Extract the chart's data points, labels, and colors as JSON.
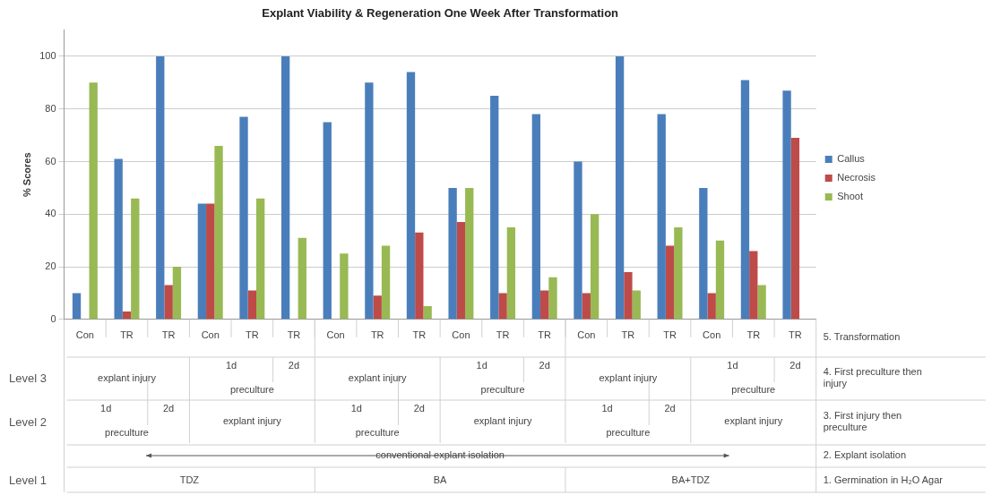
{
  "chart_data": {
    "type": "bar",
    "title": "Explant Viability & Regeneration One Week After Transformation",
    "ylabel": "% Scores",
    "categories": [
      "Con",
      "TR",
      "TR",
      "Con",
      "TR",
      "TR",
      "Con",
      "TR",
      "TR",
      "Con",
      "TR",
      "TR",
      "Con",
      "TR",
      "TR",
      "Con",
      "TR",
      "TR"
    ],
    "series": [
      {
        "name": "Callus",
        "color": "#4a7ebb",
        "values": [
          10,
          61,
          100,
          44,
          77,
          100,
          75,
          90,
          94,
          50,
          85,
          78,
          60,
          100,
          78,
          50,
          91,
          87
        ]
      },
      {
        "name": "Necrosis",
        "color": "#be4b48",
        "values": [
          0,
          3,
          13,
          44,
          11,
          0,
          0,
          9,
          33,
          37,
          10,
          11,
          10,
          18,
          28,
          10,
          26,
          69
        ]
      },
      {
        "name": "Shoot",
        "color": "#98b954",
        "values": [
          90,
          46,
          20,
          66,
          46,
          31,
          25,
          28,
          5,
          50,
          35,
          16,
          40,
          11,
          35,
          30,
          13,
          0
        ]
      }
    ],
    "ylim": [
      0,
      110
    ],
    "yticks": [
      0,
      20,
      40,
      60,
      80,
      100
    ],
    "grid": "y",
    "legend": "right",
    "annotations": [
      "Level 3",
      "Level 2",
      "Level 1",
      "5. Transformation",
      "4. First preculture then injury",
      "3. First injury then preculture",
      "2. Explant isolation",
      "1. Germination in H₂O Agar",
      "TDZ",
      "BA",
      "BA+TDZ",
      "conventional explant isolation",
      "explant injury",
      "1d",
      "preculture",
      "2d",
      "1d",
      "preculture",
      "2d",
      "explant injury",
      "explant injury",
      "1d",
      "preculture",
      "2d",
      "1d",
      "preculture",
      "2d",
      "explant injury",
      "explant injury",
      "1d",
      "preculture",
      "2d",
      "1d",
      "preculture",
      "2d",
      "explant injury"
    ]
  }
}
